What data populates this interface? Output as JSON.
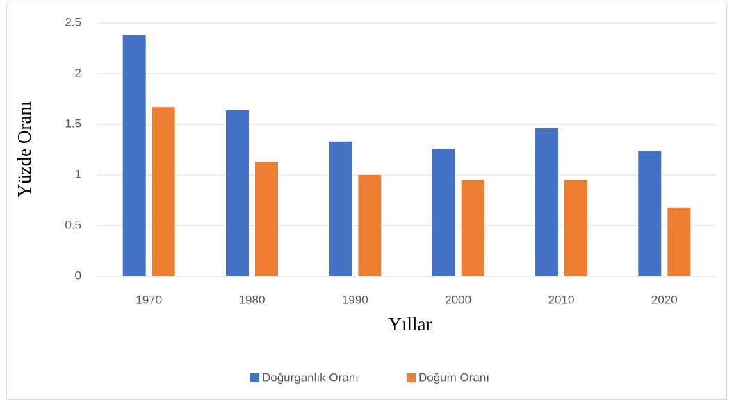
{
  "chart_data": {
    "type": "bar",
    "categories": [
      "1970",
      "1980",
      "1990",
      "2000",
      "2010",
      "2020"
    ],
    "series": [
      {
        "name": "Doğurganlık Oranı",
        "color": "#4472c4",
        "values": [
          2.38,
          1.64,
          1.33,
          1.26,
          1.46,
          1.24
        ]
      },
      {
        "name": "Doğum Oranı",
        "color": "#ed7d31",
        "values": [
          1.67,
          1.13,
          1.0,
          0.95,
          0.95,
          0.68
        ]
      }
    ],
    "ylim": [
      0,
      2.5
    ],
    "yticks": [
      0,
      0.5,
      1,
      1.5,
      2,
      2.5
    ],
    "xlabel": "Yıllar",
    "ylabel": "Yüzde Oranı",
    "grid": true,
    "legend": "bottom"
  }
}
